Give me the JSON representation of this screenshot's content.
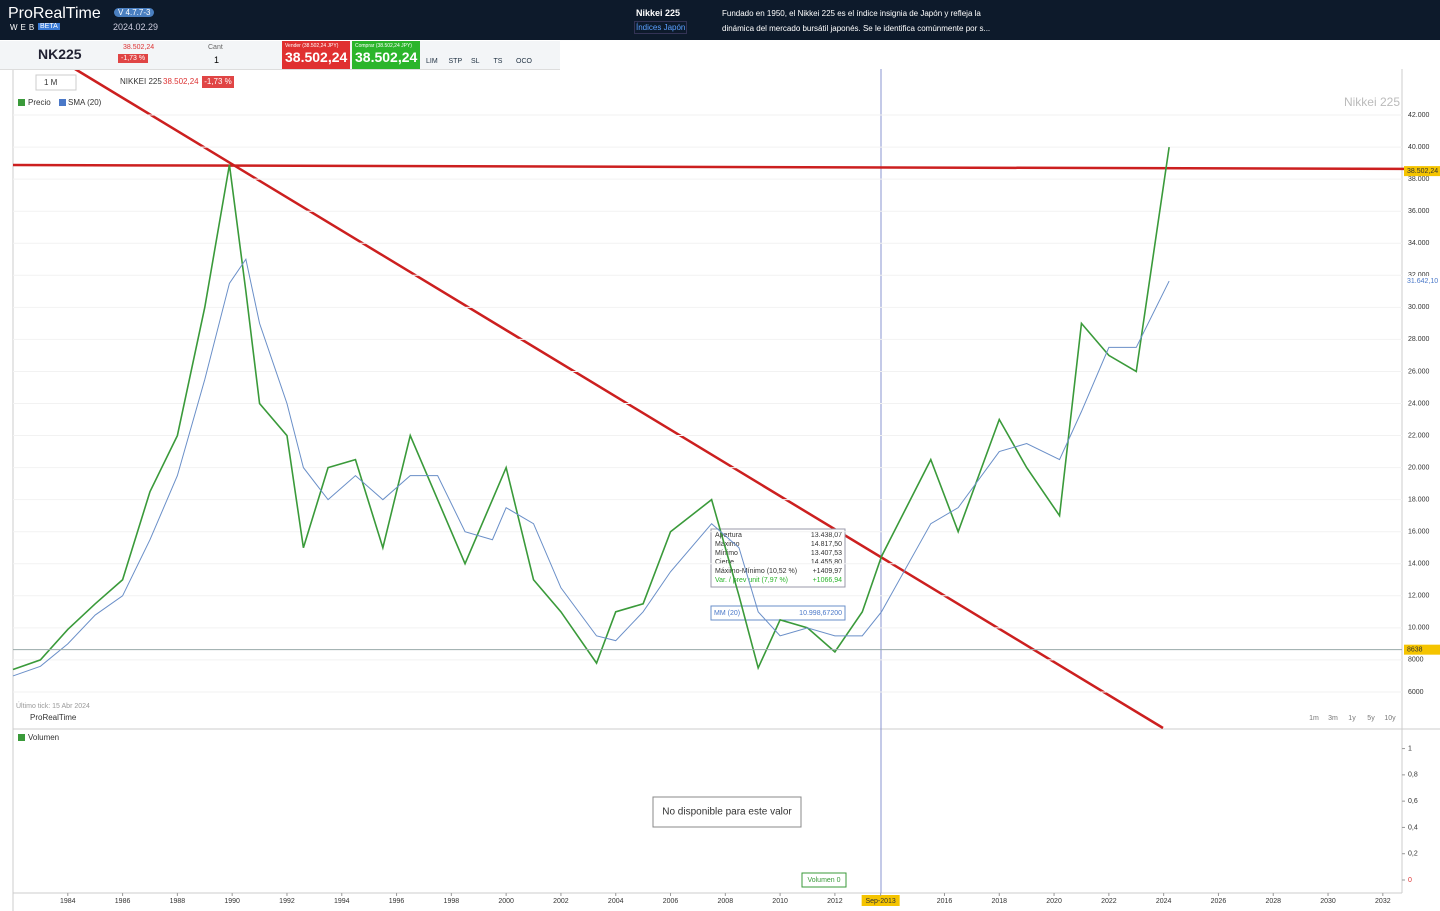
{
  "header": {
    "logo": "ProRealTime",
    "logo_sub": "WEB",
    "badge": "BETA",
    "version": "V 4.7.7-3",
    "date": "2024.02.29",
    "instrument": "Nikkei 225",
    "category": "Índices Japón",
    "description": "Fundado en 1950, el Nikkei 225 es el índice insignia de Japón y refleja la dinámica del mercado bursátil japonés. Se le identifica comúnmente por s..."
  },
  "toolbar": {
    "symbol": "NK225",
    "price": "38.502,24",
    "change": "-1,73 %",
    "qty_label": "Cant",
    "qty": "1",
    "sell_label": "Vender (38.502,24 JPY)",
    "sell_price": "38.502,24",
    "buy_label": "Comprar (38.502,24 JPY)",
    "buy_price": "38.502,24",
    "orders": [
      "LIM",
      "STP",
      "SL",
      "TS",
      "OCO"
    ]
  },
  "chart_header": {
    "period": "1 M",
    "name": "NIKKEI 225",
    "price": "38.502,24",
    "change": "-1,73 %",
    "watermark": "Nikkei 225",
    "last_tick": "Último tick: 15 Abr 2024",
    "brand": "ProRealTime",
    "ranges": [
      "1m",
      "3m",
      "1y",
      "5y",
      "10y"
    ]
  },
  "tooltip": {
    "rows": [
      [
        "Apertura",
        "13.438,07"
      ],
      [
        "Máximo",
        "14.817,50"
      ],
      [
        "Mínimo",
        "13.407,53"
      ],
      [
        "Cierre",
        "14.455,80"
      ],
      [
        "Máximo-Mínimo (10,52 %)",
        "+1409,97"
      ],
      [
        "Var. / prev unit (7,97 %)",
        "+1066,94"
      ]
    ],
    "ma_label": "MM (20)",
    "ma_value": "10.998,67200"
  },
  "volume": {
    "message": "No disponible para este valor",
    "cursor": "Volumen 0"
  },
  "chart_data": [
    {
      "type": "line",
      "x": [
        1982,
        1983,
        1984,
        1985,
        1986,
        1987,
        1988,
        1989,
        1989.9,
        1990.5,
        1991,
        1992,
        1992.6,
        1993.5,
        1994.5,
        1995.5,
        1996.5,
        1997.5,
        1998.5,
        1999.5,
        2000,
        2001,
        2002,
        2003.3,
        2004,
        2005,
        2006,
        2007.5,
        2008.5,
        2009.2,
        2010,
        2011,
        2012,
        2013,
        2013.7,
        2015.5,
        2016.5,
        2018,
        2019,
        2020.2,
        2021,
        2022,
        2023,
        2024.2
      ],
      "series": [
        {
          "name": "Precio",
          "color": "#3a9a3a",
          "values": [
            7400,
            8000,
            9900,
            11500,
            13000,
            18500,
            22000,
            30000,
            38900,
            31000,
            24000,
            22000,
            15000,
            20000,
            20500,
            15000,
            22000,
            18000,
            14000,
            18000,
            20000,
            13000,
            11000,
            7800,
            11000,
            11500,
            16000,
            18000,
            12000,
            7500,
            10500,
            10000,
            8500,
            11000,
            14455,
            20500,
            16000,
            23000,
            20000,
            17000,
            29000,
            27000,
            26000,
            40000
          ]
        },
        {
          "name": "SMA (20)",
          "color": "#6a8fc8",
          "values": [
            7000,
            7600,
            9000,
            10800,
            12000,
            15500,
            19500,
            25500,
            31500,
            33000,
            29000,
            24000,
            20000,
            18000,
            19500,
            18000,
            19500,
            19500,
            16000,
            15500,
            17500,
            16500,
            12500,
            9500,
            9200,
            11000,
            13500,
            16500,
            15000,
            11000,
            9500,
            10000,
            9500,
            9500,
            11000,
            16500,
            17500,
            21000,
            21500,
            20500,
            23500,
            27500,
            27500,
            31642
          ]
        }
      ],
      "xlim": [
        1982,
        2032.7
      ],
      "ylim": [
        4000,
        44000
      ],
      "xticks": [
        1984,
        1986,
        1988,
        1990,
        1992,
        1994,
        1996,
        1998,
        2000,
        2002,
        2004,
        2006,
        2008,
        2010,
        2012,
        {
          "value": 2013.67,
          "label": "Sep-2013"
        },
        2016,
        2018,
        2020,
        2022,
        2024,
        2026,
        2028,
        2030,
        2032
      ],
      "yticks": [
        6000,
        8000,
        {
          "value": 10000,
          "label": "10.000"
        },
        {
          "value": 12000,
          "label": "12.000"
        },
        {
          "value": 14000,
          "label": "14.000"
        },
        {
          "value": 16000,
          "label": "16.000"
        },
        {
          "value": 18000,
          "label": "18.000"
        },
        {
          "value": 20000,
          "label": "20.000"
        },
        {
          "value": 22000,
          "label": "22.000"
        },
        {
          "value": 24000,
          "label": "24.000"
        },
        {
          "value": 26000,
          "label": "26.000"
        },
        {
          "value": 28000,
          "label": "28.000"
        },
        {
          "value": 30000,
          "label": "30.000"
        },
        {
          "value": 32000,
          "label": "32.000"
        },
        {
          "value": 34000,
          "label": "34.000"
        },
        {
          "value": 36000,
          "label": "36.000"
        },
        {
          "value": 38000,
          "label": "38.000"
        },
        {
          "value": 40000,
          "label": "40.000"
        },
        {
          "value": 42000,
          "label": "42.000"
        }
      ],
      "markers": [
        {
          "value": 38502.24,
          "label": "38.502,24",
          "color": "#f5c400"
        },
        {
          "value": 31642.1,
          "label": "31.642,10",
          "color": "#ffffff"
        },
        {
          "value": 8638,
          "label": "8638",
          "color": "#f5c400"
        }
      ]
    },
    {
      "type": "bar",
      "series": [
        {
          "name": "Volumen",
          "color": "#3a9a3a",
          "values": []
        }
      ],
      "ylim": [
        0,
        1.05
      ],
      "yticks": [
        0,
        {
          "value": 0.2,
          "label": "0,2"
        },
        {
          "value": 0.4,
          "label": "0,4"
        },
        {
          "value": 0.6,
          "label": "0,6"
        },
        {
          "value": 0.8,
          "label": "0,8"
        },
        1
      ]
    }
  ]
}
